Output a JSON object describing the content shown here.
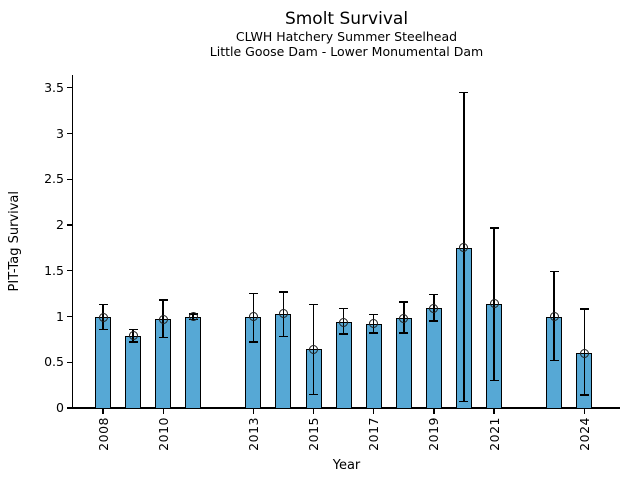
{
  "chart_data": {
    "type": "bar",
    "title": "Smolt Survival",
    "subtitle1": "CLWH Hatchery Summer Steelhead",
    "subtitle2": "Little Goose Dam - Lower Monumental Dam",
    "xlabel": "Year",
    "ylabel": "PIT-Tag Survival",
    "ylim": [
      0,
      3.64
    ],
    "yticks": [
      0,
      0.5,
      1,
      1.5,
      2,
      2.5,
      3,
      3.5
    ],
    "ytick_labels": [
      "0",
      "0.5",
      "1",
      "1.5",
      "2",
      "2.5",
      "3",
      "3.5"
    ],
    "xticks": [
      2008,
      2010,
      2013,
      2015,
      2017,
      2019,
      2021,
      2024
    ],
    "grid": false,
    "legend": "none",
    "bar_color": "#56a8d5",
    "bar_edge_color": "#000000",
    "errorbar_color": "#000000",
    "marker": "open-circle",
    "series": [
      {
        "year": 2008,
        "value": 0.99,
        "err_low": 0.86,
        "err_high": 1.13
      },
      {
        "year": 2009,
        "value": 0.79,
        "err_low": 0.72,
        "err_high": 0.86
      },
      {
        "year": 2010,
        "value": 0.97,
        "err_low": 0.77,
        "err_high": 1.18
      },
      {
        "year": 2011,
        "value": 1.0,
        "err_low": 0.97,
        "err_high": 1.03
      },
      {
        "year": 2013,
        "value": 1.0,
        "err_low": 0.72,
        "err_high": 1.25
      },
      {
        "year": 2014,
        "value": 1.03,
        "err_low": 0.78,
        "err_high": 1.27
      },
      {
        "year": 2015,
        "value": 0.64,
        "err_low": 0.15,
        "err_high": 1.13
      },
      {
        "year": 2016,
        "value": 0.94,
        "err_low": 0.81,
        "err_high": 1.09
      },
      {
        "year": 2017,
        "value": 0.92,
        "err_low": 0.82,
        "err_high": 1.02
      },
      {
        "year": 2018,
        "value": 0.98,
        "err_low": 0.82,
        "err_high": 1.16
      },
      {
        "year": 2019,
        "value": 1.09,
        "err_low": 0.95,
        "err_high": 1.24
      },
      {
        "year": 2020,
        "value": 1.75,
        "err_low": 0.07,
        "err_high": 3.45
      },
      {
        "year": 2021,
        "value": 1.14,
        "err_low": 0.3,
        "err_high": 1.97
      },
      {
        "year": 2023,
        "value": 1.0,
        "err_low": 0.52,
        "err_high": 1.49
      },
      {
        "year": 2024,
        "value": 0.6,
        "err_low": 0.14,
        "err_high": 1.08
      }
    ]
  }
}
